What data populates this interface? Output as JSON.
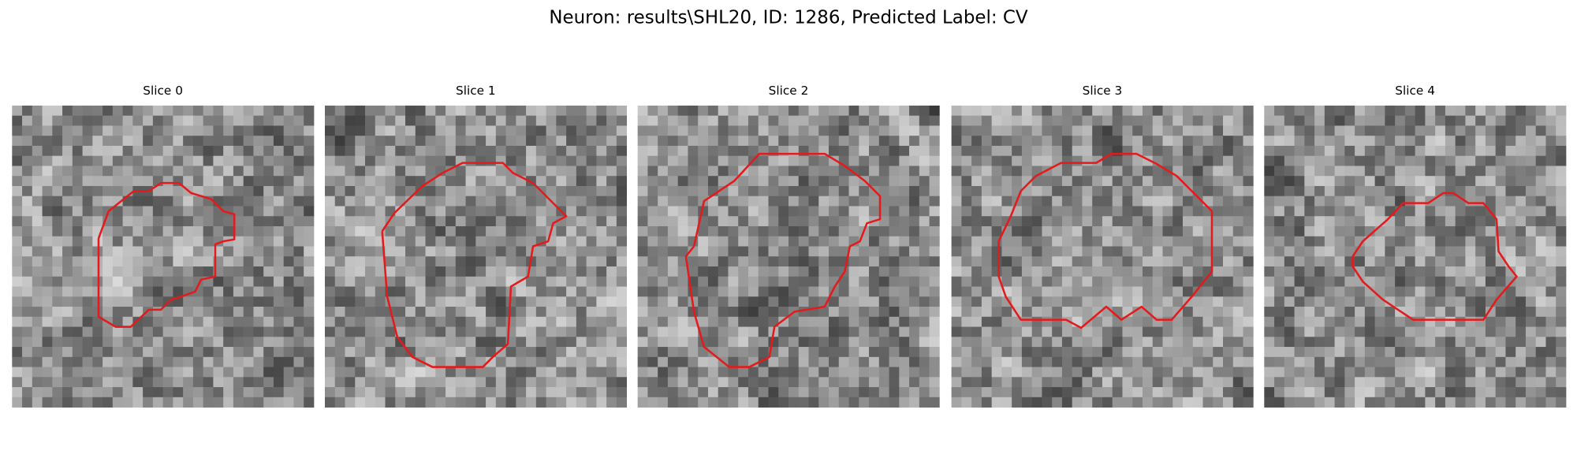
{
  "title": "Neuron: results\\SHL20, ID: 1286, Predicted Label: CV",
  "panels": [
    {
      "title": "Slice 0"
    },
    {
      "title": "Slice 1"
    },
    {
      "title": "Slice 2"
    },
    {
      "title": "Slice 3"
    },
    {
      "title": "Slice 4"
    }
  ]
}
